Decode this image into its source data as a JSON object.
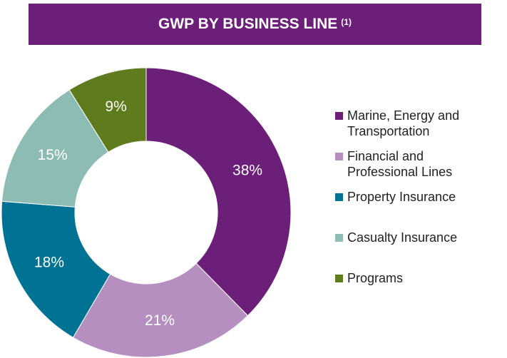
{
  "chart_data": {
    "type": "donut",
    "title": "GWP BY BUSINESS LINE",
    "title_note": "(1)",
    "categories": [
      "Marine, Energy and Transportation",
      "Financial and Professional Lines",
      "Property Insurance",
      "Casualty Insurance",
      "Programs"
    ],
    "values": [
      38,
      21,
      18,
      15,
      9
    ],
    "value_labels": [
      "38%",
      "21%",
      "18%",
      "15%",
      "9%"
    ],
    "colors": [
      "#6c1f78",
      "#b48fc0",
      "#007395",
      "#8dbcb5",
      "#5e7b1d"
    ],
    "legend": "right"
  }
}
